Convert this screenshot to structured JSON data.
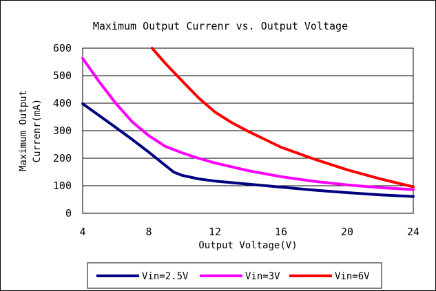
{
  "chart_data": {
    "type": "line",
    "title": "Maximum Output Currenr vs. Output Voltage",
    "xlabel": "Output Voltage(V)",
    "ylabel_lines": [
      "Maximum Output",
      "Currenr(mA)"
    ],
    "xlim": [
      4,
      24
    ],
    "ylim": [
      0,
      600
    ],
    "xticks": [
      4,
      8,
      12,
      16,
      20,
      24
    ],
    "yticks": [
      0,
      100,
      200,
      300,
      400,
      500,
      600
    ],
    "grid": "horizontal",
    "legend_position": "bottom",
    "series": [
      {
        "name": "Vin=2.5V",
        "color": "#000080",
        "x": [
          4,
          5,
          6,
          7,
          8,
          9,
          9.5,
          10,
          11,
          12,
          14,
          16,
          18,
          20,
          22,
          24
        ],
        "y": [
          398,
          355,
          312,
          268,
          222,
          174,
          150,
          138,
          125,
          117,
          106,
          95,
          84,
          75,
          67,
          61
        ]
      },
      {
        "name": "Vin=3V",
        "color": "#ff00ff",
        "x": [
          4,
          5,
          6,
          7,
          8,
          9,
          10,
          11,
          12,
          14,
          16,
          18,
          20,
          22,
          24
        ],
        "y": [
          563,
          478,
          400,
          332,
          282,
          243,
          220,
          200,
          183,
          155,
          133,
          116,
          103,
          93,
          86
        ]
      },
      {
        "name": "Vin=6V",
        "color": "#ff0000",
        "x": [
          8.2,
          9,
          10,
          11,
          12,
          13,
          14,
          16,
          18,
          20,
          22,
          24
        ],
        "y": [
          600,
          545,
          482,
          420,
          368,
          330,
          298,
          240,
          197,
          158,
          125,
          96
        ]
      }
    ]
  }
}
